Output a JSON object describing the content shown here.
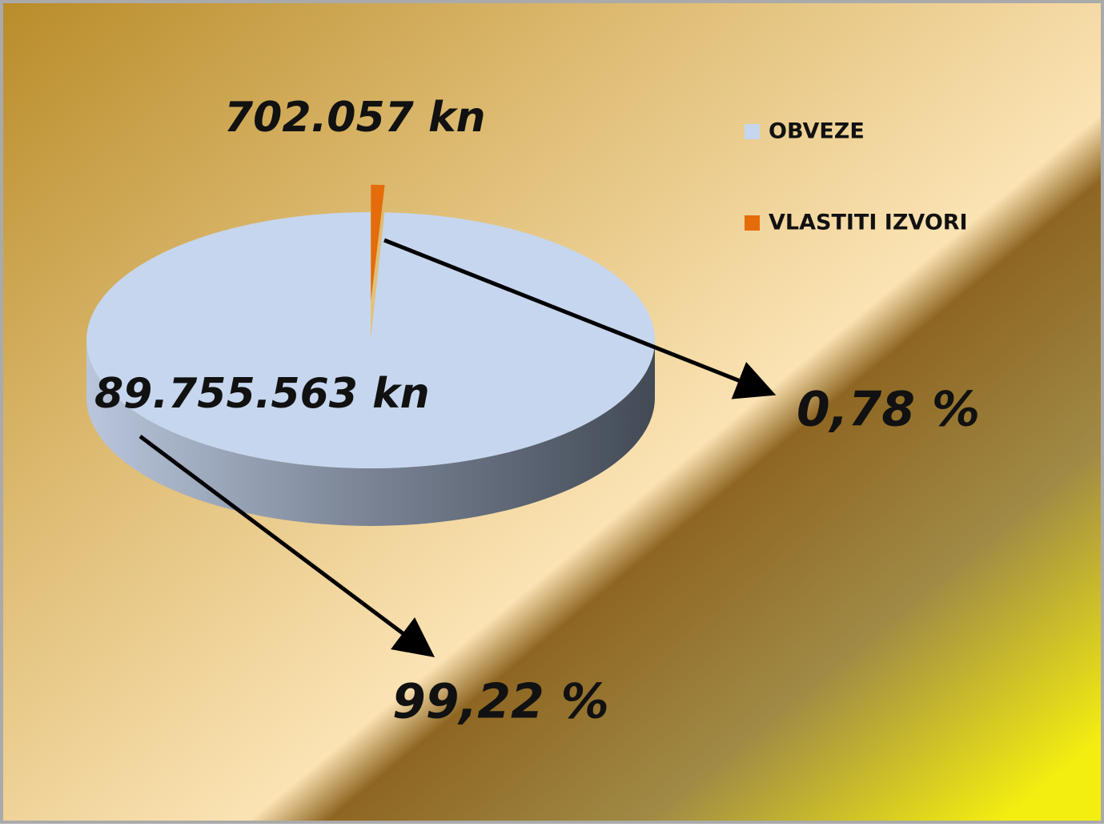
{
  "chart_data": {
    "type": "pie3d",
    "categories": [
      "OBVEZE",
      "VLASTITI IZVORI"
    ],
    "values": [
      89755563,
      702057
    ],
    "value_labels": [
      "89.755.563 kn",
      "702.057 kn"
    ],
    "percentages": [
      99.22,
      0.78
    ],
    "percent_labels": [
      "99,22 %",
      "0,78 %"
    ],
    "colors": [
      "#c6d6ee",
      "#e46c0a"
    ],
    "legend": "top-right"
  }
}
